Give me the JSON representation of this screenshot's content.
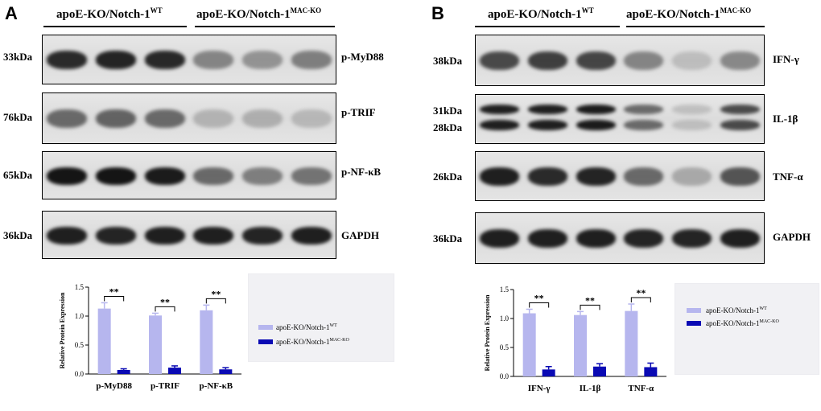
{
  "panels": [
    {
      "letter": "A",
      "group_wt": {
        "base": "apoE-KO/Notch-1",
        "sup": "WT"
      },
      "group_ko": {
        "base": "apoE-KO/Notch-1",
        "sup": "MAC-KO"
      },
      "blots": [
        {
          "kda": [
            "33kDa"
          ],
          "protein": "p-MyD88",
          "bands": [
            0.85,
            0.88,
            0.86,
            0.42,
            0.35,
            0.45
          ],
          "two_bands": false
        },
        {
          "kda": [
            "76kDa"
          ],
          "protein": "p-TRIF",
          "bands": [
            0.55,
            0.58,
            0.55,
            0.2,
            0.22,
            0.18
          ],
          "two_bands": false
        },
        {
          "kda": [
            "65kDa"
          ],
          "protein": "p-NF-κB",
          "bands": [
            0.95,
            0.95,
            0.92,
            0.55,
            0.45,
            0.5
          ],
          "two_bands": false
        },
        {
          "kda": [
            "36kDa"
          ],
          "protein": "GAPDH",
          "bands": [
            0.9,
            0.88,
            0.9,
            0.9,
            0.88,
            0.9
          ],
          "two_bands": false
        }
      ],
      "legend": {
        "entries": [
          {
            "base": "apoE-KO/Notch-1",
            "sup": "WT",
            "color": "#b6b6ee"
          },
          {
            "base": "apoE-KO/Notch-1",
            "sup": "MAC-KO",
            "color": "#0a0ab4"
          }
        ]
      },
      "chart_data": {
        "type": "bar",
        "ylabel": "Relative Protein Expression",
        "ylim": [
          0,
          1.5
        ],
        "yticks": [
          "0.0",
          "0.5",
          "1.0",
          "1.5"
        ],
        "categories": [
          "p-MyD88",
          "p-TRIF",
          "p-NF-κB"
        ],
        "series": [
          {
            "name": "apoE-KO/Notch-1WT",
            "values": [
              1.13,
              1.01,
              1.1
            ],
            "errors": [
              0.1,
              0.04,
              0.09
            ]
          },
          {
            "name": "apoE-KO/Notch-1MAC-KO",
            "values": [
              0.07,
              0.11,
              0.08
            ],
            "errors": [
              0.02,
              0.03,
              0.03
            ]
          }
        ],
        "significance": "**"
      }
    },
    {
      "letter": "B",
      "group_wt": {
        "base": "apoE-KO/Notch-1",
        "sup": "WT"
      },
      "group_ko": {
        "base": "apoE-KO/Notch-1",
        "sup": "MAC-KO"
      },
      "blots": [
        {
          "kda": [
            "38kDa"
          ],
          "protein": "IFN-γ",
          "bands": [
            0.7,
            0.75,
            0.72,
            0.42,
            0.15,
            0.4
          ],
          "two_bands": false
        },
        {
          "kda": [
            "31kDa",
            "28kDa"
          ],
          "protein": "IL-1β",
          "bands": [
            0.9,
            0.9,
            0.92,
            0.55,
            0.15,
            0.7
          ],
          "two_bands": true
        },
        {
          "kda": [
            "26kDa"
          ],
          "protein": "TNF-α",
          "bands": [
            0.9,
            0.85,
            0.88,
            0.55,
            0.25,
            0.65
          ],
          "two_bands": false
        },
        {
          "kda": [
            "36kDa"
          ],
          "protein": "GAPDH",
          "bands": [
            0.9,
            0.9,
            0.9,
            0.88,
            0.88,
            0.9
          ],
          "two_bands": false
        }
      ],
      "legend": {
        "entries": [
          {
            "base": "apoE-KO/Notch-1",
            "sup": "WT",
            "color": "#b6b6ee"
          },
          {
            "base": "apoE-KO/Notch-1",
            "sup": "MAC-KO",
            "color": "#0a0ab4"
          }
        ]
      },
      "chart_data": {
        "type": "bar",
        "ylabel": "Relative Protein Expression",
        "ylim": [
          0,
          1.5
        ],
        "yticks": [
          "0.0",
          "0.5",
          "1.0",
          "1.5"
        ],
        "categories": [
          "IFN-γ",
          "IL-1β",
          "TNF-α"
        ],
        "series": [
          {
            "name": "apoE-KO/Notch-1WT",
            "values": [
              1.09,
              1.06,
              1.13
            ],
            "errors": [
              0.07,
              0.06,
              0.12
            ]
          },
          {
            "name": "apoE-KO/Notch-1MAC-KO",
            "values": [
              0.12,
              0.17,
              0.16
            ],
            "errors": [
              0.05,
              0.05,
              0.07
            ]
          }
        ],
        "significance": "**"
      }
    }
  ]
}
